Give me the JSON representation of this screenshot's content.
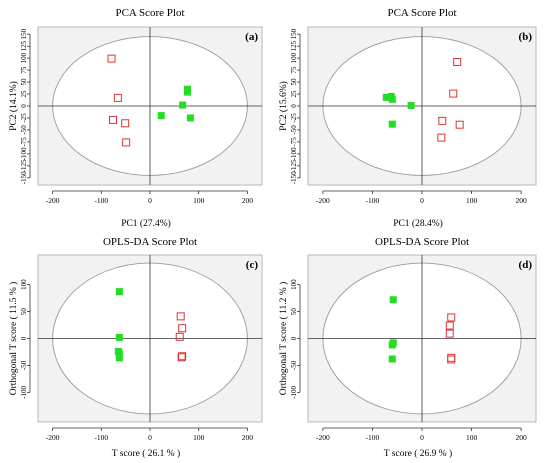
{
  "colors": {
    "plot_bg": "#f2f2f2",
    "frame": "#b8b8b8",
    "axis": "#333333",
    "ellipse": "#9a9a9a",
    "filled_square": "#22dd22",
    "open_square": "#dd3333"
  },
  "chart_data": [
    {
      "type": "scatter",
      "title": "PCA Score Plot",
      "panel_label": "(a)",
      "xlabel": "PC1 (27.4%)",
      "ylabel": "PC2 (14.1%)",
      "xlim": [
        -230,
        230
      ],
      "ylim": [
        -165,
        165
      ],
      "xticks": [
        -200,
        -100,
        0,
        100,
        200
      ],
      "yticks": [
        -150,
        -125,
        -100,
        -75,
        -50,
        -25,
        0,
        25,
        50,
        75,
        100,
        125,
        150
      ],
      "ellipse": {
        "rx": 200,
        "ry": 145
      },
      "series": [
        {
          "marker": "filled-square",
          "points": [
            [
              77,
              35
            ],
            [
              77,
              29
            ],
            [
              67,
              2
            ],
            [
              23,
              -20
            ],
            [
              83,
              -25
            ]
          ]
        },
        {
          "marker": "open-square",
          "points": [
            [
              -80,
              100
            ],
            [
              -67,
              18
            ],
            [
              -77,
              -28
            ],
            [
              -52,
              -35
            ],
            [
              -50,
              -75
            ]
          ]
        }
      ]
    },
    {
      "type": "scatter",
      "title": "PCA Score Plot",
      "panel_label": "(b)",
      "xlabel": "PC1 (28.4%)",
      "ylabel": "PC2 (15.6%)",
      "xlim": [
        -230,
        230
      ],
      "ylim": [
        -165,
        165
      ],
      "xticks": [
        -200,
        -100,
        0,
        100,
        200
      ],
      "yticks": [
        -150,
        -125,
        -100,
        -75,
        -50,
        -25,
        0,
        25,
        50,
        75,
        100,
        125,
        150
      ],
      "ellipse": {
        "rx": 200,
        "ry": 145
      },
      "series": [
        {
          "marker": "filled-square",
          "points": [
            [
              -72,
              18
            ],
            [
              -62,
              20
            ],
            [
              -60,
              14
            ],
            [
              -22,
              1
            ],
            [
              -60,
              -38
            ]
          ]
        },
        {
          "marker": "open-square",
          "points": [
            [
              70,
              93
            ],
            [
              62,
              27
            ],
            [
              40,
              -30
            ],
            [
              75,
              -38
            ],
            [
              38,
              -65
            ]
          ]
        }
      ]
    },
    {
      "type": "scatter",
      "title": "OPLS-DA Score Plot",
      "panel_label": "(c)",
      "xlabel": "T score ( 26.1 % )",
      "ylabel": "Orthogonal T score ( 11.5 % )",
      "xlim": [
        -230,
        230
      ],
      "ylim": [
        -155,
        155
      ],
      "xticks": [
        -200,
        -100,
        0,
        100,
        200
      ],
      "yticks": [
        -100,
        -50,
        0,
        50,
        100
      ],
      "ellipse": {
        "rx": 200,
        "ry": 140
      },
      "series": [
        {
          "marker": "filled-square",
          "points": [
            [
              -63,
              87
            ],
            [
              -63,
              2
            ],
            [
              -65,
              -24
            ],
            [
              -63,
              -28
            ],
            [
              -63,
              -36
            ]
          ]
        },
        {
          "marker": "open-square",
          "points": [
            [
              62,
              42
            ],
            [
              65,
              20
            ],
            [
              60,
              4
            ],
            [
              65,
              -32
            ],
            [
              64,
              -34
            ]
          ]
        }
      ]
    },
    {
      "type": "scatter",
      "title": "OPLS-DA Score Plot",
      "panel_label": "(d)",
      "xlabel": "T score ( 26.9 % )",
      "ylabel": "Orthogonal T score ( 11.2 % )",
      "xlim": [
        -230,
        230
      ],
      "ylim": [
        -155,
        155
      ],
      "xticks": [
        -200,
        -100,
        0,
        100,
        200
      ],
      "yticks": [
        -100,
        -50,
        0,
        50,
        100
      ],
      "ellipse": {
        "rx": 200,
        "ry": 140
      },
      "series": [
        {
          "marker": "filled-square",
          "points": [
            [
              -58,
              72
            ],
            [
              -58,
              -8
            ],
            [
              -60,
              -12
            ],
            [
              -60,
              -38
            ]
          ]
        },
        {
          "marker": "open-square",
          "points": [
            [
              58,
              40
            ],
            [
              55,
              25
            ],
            [
              55,
              10
            ],
            [
              58,
              -35
            ],
            [
              58,
              -38
            ]
          ]
        }
      ]
    }
  ]
}
